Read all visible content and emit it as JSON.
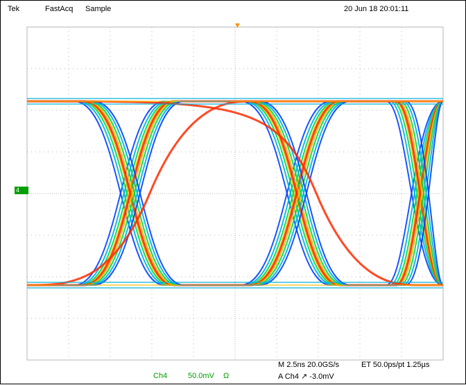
{
  "header": {
    "brand": "Tek",
    "acq_mode": "FastAcq",
    "sample_mode": "Sample",
    "datetime": "20 Jun 18 20:01:11"
  },
  "markers": {
    "ground_marker": "4",
    "trigger_marker": "▼"
  },
  "footer": {
    "channel": "Ch4",
    "scale": "50.0mV",
    "coupling": "Ω",
    "timebase": "M 2.5ns 20.0GS/s",
    "equiv_time": "ET 50.0ps/pt 1.25µs",
    "trigger": "A  Ch4  ↗  -3.0mV"
  },
  "colors": {
    "trace_hot": "#ff2a00",
    "trace_warm": "#ffbf00",
    "trace_mid": "#00d84a",
    "trace_cool": "#00b0d8",
    "trace_cold": "#0040ff",
    "graticule": "#b4b4b4",
    "marker_green": "#00a000",
    "marker_orange": "#ff8c00"
  }
}
